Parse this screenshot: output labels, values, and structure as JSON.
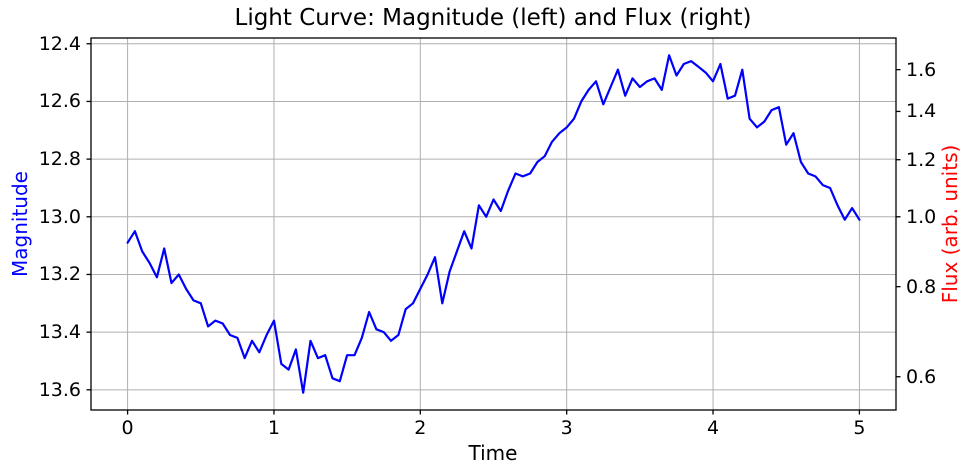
{
  "chart_data": {
    "type": "line",
    "title": "Light Curve: Magnitude (left) and Flux (right)",
    "xlabel": "Time",
    "ylabel_left": "Magnitude",
    "ylabel_right": "Flux (arb. units)",
    "legend": "none",
    "grid": true,
    "colors": {
      "line": "#0000ff",
      "ylabel_left": "#0000ff",
      "ylabel_right": "#ff0000",
      "grid": "#b0b0b0",
      "axis": "#000000",
      "background": "#ffffff"
    },
    "axes": {
      "xlim": [
        -0.25,
        5.25
      ],
      "ylim_mag": [
        12.38,
        13.67
      ],
      "mag_axis_inverted": true,
      "x_ticks": [
        0,
        1,
        2,
        3,
        4,
        5
      ],
      "x_tick_labels": [
        "0",
        "1",
        "2",
        "3",
        "4",
        "5"
      ],
      "mag_ticks": [
        12.4,
        12.6,
        12.8,
        13.0,
        13.2,
        13.4,
        13.6
      ],
      "mag_tick_labels": [
        "12.4",
        "12.6",
        "12.8",
        "13.0",
        "13.2",
        "13.4",
        "13.6"
      ],
      "flux_ticks": [
        0.6,
        0.8,
        1.0,
        1.2,
        1.4,
        1.6
      ],
      "flux_tick_labels": [
        "0.6",
        "0.8",
        "1.0",
        "1.2",
        "1.4",
        "1.6"
      ],
      "flux_mag_reference": 13.0,
      "flux_formula": "flux = 10^(-0.4 * (mag - 13.0))"
    },
    "x": [
      0.0,
      0.05,
      0.1,
      0.15,
      0.2,
      0.25,
      0.3,
      0.35,
      0.4,
      0.45,
      0.5,
      0.55,
      0.6,
      0.65,
      0.7,
      0.75,
      0.8,
      0.85,
      0.9,
      0.95,
      1.0,
      1.05,
      1.1,
      1.15,
      1.2,
      1.25,
      1.3,
      1.35,
      1.4,
      1.45,
      1.5,
      1.55,
      1.6,
      1.65,
      1.7,
      1.75,
      1.8,
      1.85,
      1.9,
      1.95,
      2.0,
      2.05,
      2.1,
      2.15,
      2.2,
      2.25,
      2.3,
      2.35,
      2.4,
      2.45,
      2.5,
      2.55,
      2.6,
      2.65,
      2.7,
      2.75,
      2.8,
      2.85,
      2.9,
      2.95,
      3.0,
      3.05,
      3.1,
      3.15,
      3.2,
      3.25,
      3.3,
      3.35,
      3.4,
      3.45,
      3.5,
      3.55,
      3.6,
      3.65,
      3.7,
      3.75,
      3.8,
      3.85,
      3.9,
      3.95,
      4.0,
      4.05,
      4.1,
      4.15,
      4.2,
      4.25,
      4.3,
      4.35,
      4.4,
      4.45,
      4.5,
      4.55,
      4.6,
      4.65,
      4.7,
      4.75,
      4.8,
      4.85,
      4.9,
      4.95,
      5.0
    ],
    "series": [
      {
        "name": "Magnitude",
        "color": "#0000ff",
        "values": [
          13.09,
          13.05,
          13.12,
          13.16,
          13.21,
          13.11,
          13.23,
          13.2,
          13.25,
          13.29,
          13.3,
          13.38,
          13.36,
          13.37,
          13.41,
          13.42,
          13.49,
          13.43,
          13.47,
          13.41,
          13.36,
          13.51,
          13.53,
          13.46,
          13.61,
          13.43,
          13.49,
          13.48,
          13.56,
          13.57,
          13.48,
          13.48,
          13.42,
          13.33,
          13.39,
          13.4,
          13.43,
          13.41,
          13.32,
          13.3,
          13.25,
          13.2,
          13.14,
          13.3,
          13.19,
          13.12,
          13.05,
          13.11,
          12.96,
          13.0,
          12.94,
          12.98,
          12.91,
          12.85,
          12.86,
          12.85,
          12.81,
          12.79,
          12.74,
          12.71,
          12.69,
          12.66,
          12.6,
          12.56,
          12.53,
          12.61,
          12.55,
          12.49,
          12.58,
          12.52,
          12.55,
          12.53,
          12.52,
          12.56,
          12.44,
          12.51,
          12.47,
          12.46,
          12.48,
          12.5,
          12.53,
          12.47,
          12.59,
          12.58,
          12.49,
          12.66,
          12.69,
          12.67,
          12.63,
          12.62,
          12.75,
          12.71,
          12.81,
          12.85,
          12.86,
          12.89,
          12.9,
          12.96,
          13.01,
          12.97,
          13.01
        ]
      }
    ]
  }
}
